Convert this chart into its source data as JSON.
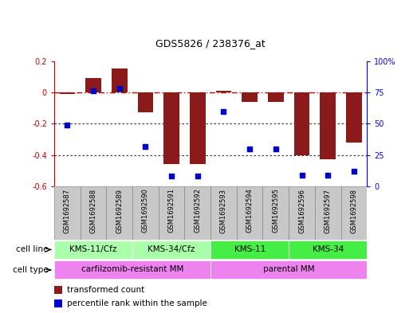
{
  "title": "GDS5826 / 238376_at",
  "samples": [
    "GSM1692587",
    "GSM1692588",
    "GSM1692589",
    "GSM1692590",
    "GSM1692591",
    "GSM1692592",
    "GSM1692593",
    "GSM1692594",
    "GSM1692595",
    "GSM1692596",
    "GSM1692597",
    "GSM1692598"
  ],
  "transformed_count": [
    -0.01,
    0.09,
    0.15,
    -0.13,
    -0.46,
    -0.46,
    0.01,
    -0.06,
    -0.06,
    -0.4,
    -0.43,
    -0.32
  ],
  "percentile_rank": [
    49,
    76,
    78,
    32,
    8,
    8,
    60,
    30,
    30,
    9,
    9,
    12
  ],
  "bar_color": "#8B1A1A",
  "dot_color": "#0000CC",
  "zero_line_color": "#CC0000",
  "ylim_left": [
    -0.6,
    0.2
  ],
  "ylim_right": [
    0,
    100
  ],
  "yticks_left": [
    0.2,
    0.0,
    -0.2,
    -0.4,
    -0.6
  ],
  "yticks_right": [
    100,
    75,
    50,
    25,
    0
  ],
  "ytick_labels_right": [
    "100%",
    "75",
    "50",
    "25",
    "0"
  ],
  "cell_line_groups": [
    {
      "label": "KMS-11/Cfz",
      "start": 0,
      "end": 2,
      "color": "#AAFFAA"
    },
    {
      "label": "KMS-34/Cfz",
      "start": 3,
      "end": 5,
      "color": "#AAFFAA"
    },
    {
      "label": "KMS-11",
      "start": 6,
      "end": 8,
      "color": "#44DD44"
    },
    {
      "label": "KMS-34",
      "start": 9,
      "end": 11,
      "color": "#44DD44"
    }
  ],
  "cell_type_groups": [
    {
      "label": "carfilzomib-resistant MM",
      "start": 0,
      "end": 5,
      "color": "#EE82EE"
    },
    {
      "label": "parental MM",
      "start": 6,
      "end": 11,
      "color": "#EE82EE"
    }
  ],
  "cell_line_label": "cell line",
  "cell_type_label": "cell type",
  "legend_items": [
    {
      "color": "#8B1A1A",
      "label": "transformed count"
    },
    {
      "color": "#0000CC",
      "label": "percentile rank within the sample"
    }
  ],
  "sample_bg_color": "#C8C8C8",
  "sample_border_color": "#888888"
}
